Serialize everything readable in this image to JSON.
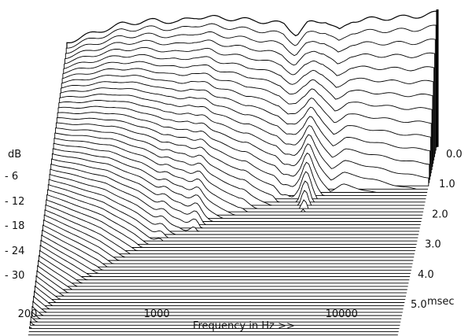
{
  "chart_data": {
    "type": "waterfall",
    "ylabel": "dB",
    "yticks": [
      "- 6",
      "- 12",
      "- 18",
      "- 24",
      "- 30"
    ],
    "ylim_db": [
      -36,
      0
    ],
    "xlabel": "Frequency in Hz >>",
    "xscale": "log",
    "xlim": [
      200,
      20000
    ],
    "xticks": [
      {
        "value": 200,
        "label": "200"
      },
      {
        "value": 1000,
        "label": "1000"
      },
      {
        "value": 10000,
        "label": "10000"
      }
    ],
    "zlabel": "msec",
    "zlim": [
      0,
      5
    ],
    "zticks": [
      {
        "value": 0,
        "label": "0.0"
      },
      {
        "value": 1,
        "label": "1.0"
      },
      {
        "value": 2,
        "label": "2.0"
      },
      {
        "value": 3,
        "label": "3.0"
      },
      {
        "value": 4,
        "label": "4.0"
      },
      {
        "value": 5,
        "label": "5.0"
      }
    ],
    "slice_count": 60,
    "slice_interval_msec": 0.083,
    "initial_response_db": [
      [
        200,
        -9
      ],
      [
        300,
        -6
      ],
      [
        400,
        -4
      ],
      [
        600,
        -3
      ],
      [
        800,
        -3.5
      ],
      [
        1000,
        -2
      ],
      [
        1500,
        -2.5
      ],
      [
        2000,
        -3
      ],
      [
        3000,
        -4
      ],
      [
        3500,
        -7
      ],
      [
        4000,
        -4
      ],
      [
        5000,
        -3
      ],
      [
        6000,
        -6
      ],
      [
        7000,
        -3
      ],
      [
        10000,
        -2.5
      ],
      [
        15000,
        -2
      ],
      [
        20000,
        -1
      ]
    ],
    "decay_modes": [
      {
        "freq_hz": 800,
        "decay_msec": 1.6
      },
      {
        "freq_hz": 1200,
        "decay_msec": 1.4
      },
      {
        "freq_hz": 2000,
        "decay_msec": 1.1
      },
      {
        "freq_hz": 3500,
        "decay_msec": 1.0
      },
      {
        "freq_hz": 4500,
        "decay_msec": 1.1
      },
      {
        "freq_hz": 6000,
        "decay_msec": 0.8
      },
      {
        "freq_hz": 9000,
        "decay_msec": 0.6
      },
      {
        "freq_hz": 13000,
        "decay_msec": 0.4
      }
    ]
  }
}
